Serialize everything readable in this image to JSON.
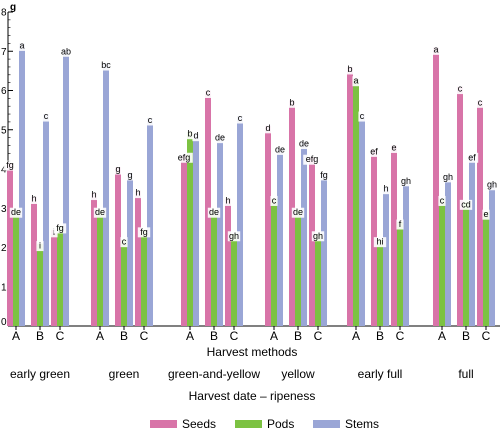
{
  "chart_data": {
    "type": "bar",
    "ylabel": "g",
    "ylim": [
      0,
      8
    ],
    "yticks": [
      "0",
      "1",
      "2",
      "3",
      "4",
      "5",
      "6",
      "7",
      "8"
    ],
    "xlabel": "Harvest methods",
    "group_title": "Harvest date – ripeness",
    "methods": [
      "A",
      "B",
      "C"
    ],
    "groups": [
      "early green",
      "green",
      "green-and-yellow",
      "yellow",
      "early full",
      "full"
    ],
    "series": [
      {
        "name": "Seeds",
        "color": "#d874a8",
        "values": [
          [
            4.15,
            3.3,
            2.45
          ],
          [
            3.4,
            4.05,
            3.45
          ],
          [
            4.35,
            6.0,
            3.25
          ],
          [
            5.1,
            5.75,
            4.3
          ],
          [
            6.6,
            4.5,
            4.6
          ],
          [
            7.1,
            6.1,
            5.75
          ]
        ],
        "labels": [
          [
            "fg",
            "h",
            "i"
          ],
          [
            "h",
            "g",
            "h"
          ],
          [
            "efg",
            "c",
            "h"
          ],
          [
            "d",
            "b",
            "efg"
          ],
          [
            "b",
            "ef",
            "e"
          ],
          [
            "a",
            "c",
            "c"
          ]
        ]
      },
      {
        "name": "Pods",
        "color": "#7cc242",
        "values": [
          [
            2.95,
            2.1,
            2.55
          ],
          [
            2.95,
            2.2,
            2.45
          ],
          [
            4.95,
            2.95,
            2.35
          ],
          [
            3.25,
            2.95,
            2.35
          ],
          [
            6.3,
            2.2,
            2.65
          ],
          [
            3.25,
            3.15,
            2.9
          ]
        ],
        "labels": [
          [
            "de",
            "i",
            "fg"
          ],
          [
            "de",
            "c",
            "fg"
          ],
          [
            "b",
            "de",
            "gh"
          ],
          [
            "c",
            "de",
            "gh"
          ],
          [
            "a",
            "hi",
            "f"
          ],
          [
            "c",
            "cd",
            "e"
          ]
        ]
      },
      {
        "name": "Stems",
        "color": "#9aa6d6",
        "values": [
          [
            7.2,
            5.4,
            7.05
          ],
          [
            6.7,
            3.9,
            5.3
          ],
          [
            4.9,
            4.85,
            5.35
          ],
          [
            4.55,
            4.7,
            3.9
          ],
          [
            5.4,
            3.55,
            3.75
          ],
          [
            3.85,
            4.35,
            3.65
          ]
        ],
        "labels": [
          [
            "a",
            "c",
            "ab"
          ],
          [
            "bc",
            "g",
            "c"
          ],
          [
            "d",
            "de",
            "c"
          ],
          [
            "de",
            "de",
            "fg"
          ],
          [
            "c",
            "h",
            "gh"
          ],
          [
            "gh",
            "ef",
            "gh"
          ]
        ]
      }
    ],
    "legend": {
      "position": "bottom"
    }
  }
}
